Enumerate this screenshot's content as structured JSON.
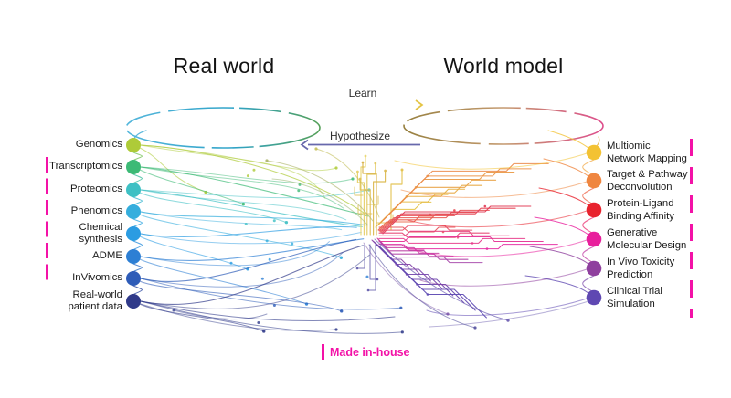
{
  "titles": {
    "real_world": "Real world",
    "world_model": "World model"
  },
  "arrows": {
    "learn": {
      "label": "Learn",
      "direction": "right",
      "color": "#E4C443"
    },
    "hypothesize": {
      "label": "Hypothesize",
      "direction": "left",
      "color": "#6768AC"
    }
  },
  "left_column": {
    "items": [
      {
        "label": "Genomics",
        "color": "#AECB38",
        "made_in_house": false
      },
      {
        "label": "Transcriptomics",
        "color": "#3DBA76",
        "made_in_house": true
      },
      {
        "label": "Proteomics",
        "color": "#3EC0C4",
        "made_in_house": true
      },
      {
        "label": "Phenomics",
        "color": "#35AEDD",
        "made_in_house": true
      },
      {
        "label": "Chemical\nsynthesis",
        "color": "#2B9CE2",
        "made_in_house": true
      },
      {
        "label": "ADME",
        "color": "#2D7FD4",
        "made_in_house": true
      },
      {
        "label": "InVivomics",
        "color": "#2E5CB8",
        "made_in_house": true
      },
      {
        "label": "Real-world\npatient data",
        "color": "#303A8A",
        "made_in_house": false
      }
    ]
  },
  "right_column": {
    "items": [
      {
        "label": "Multiomic\nNetwork Mapping",
        "color": "#F3C233",
        "made_in_house": true
      },
      {
        "label": "Target & Pathway\nDeconvolution",
        "color": "#EF8640",
        "made_in_house": true
      },
      {
        "label": "Protein-Ligand\nBinding Affinity",
        "color": "#E8232E",
        "made_in_house": true
      },
      {
        "label": "Generative\nMolecular Design",
        "color": "#E81F9C",
        "made_in_house": true
      },
      {
        "label": "In Vivo Toxicity\nPrediction",
        "color": "#8F3F9E",
        "made_in_house": true
      },
      {
        "label": "Clinical Trial\nSimulation",
        "color": "#5F48B2",
        "made_in_house": true
      }
    ]
  },
  "legend": {
    "label": "Made in-house",
    "color": "#F312A7"
  }
}
